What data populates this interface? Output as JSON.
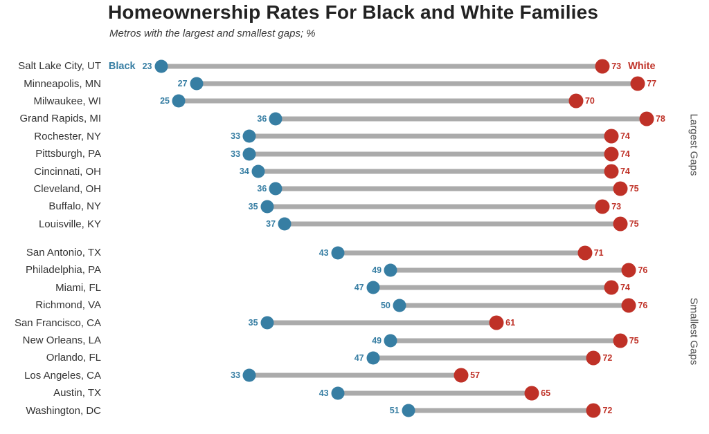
{
  "header": {
    "title": "Homeownership Rates For Black and White Families",
    "subtitle": "Metros with the largest and smallest gaps; %"
  },
  "legend": {
    "black": "Black",
    "white": "White"
  },
  "colors": {
    "black_dot": "#377EA3",
    "white_dot": "#BF3127",
    "bar": "#ABABAB",
    "title_text": "#222222",
    "metro_label_text": "#333333",
    "group_label_text": "#4d4d4d",
    "background": "#FFFFFF"
  },
  "chart_data": {
    "type": "dumbbell",
    "title": "Homeownership Rates For Black and White Families",
    "subtitle": "Metros with the largest and smallest gaps; %",
    "series_names": [
      "Black",
      "White"
    ],
    "unit": "%",
    "x_domain": [
      17,
      82
    ],
    "grid": false,
    "legend_position": "inline-first-row",
    "group_labels_position": "right-rotated",
    "groups": [
      {
        "label": "Largest Gaps",
        "rows": [
          {
            "metro": "Salt Lake City, UT",
            "black": 23,
            "white": 73
          },
          {
            "metro": "Minneapolis, MN",
            "black": 27,
            "white": 77
          },
          {
            "metro": "Milwaukee, WI",
            "black": 25,
            "white": 70
          },
          {
            "metro": "Grand Rapids, MI",
            "black": 36,
            "white": 78
          },
          {
            "metro": "Rochester, NY",
            "black": 33,
            "white": 74
          },
          {
            "metro": "Pittsburgh, PA",
            "black": 33,
            "white": 74
          },
          {
            "metro": "Cincinnati, OH",
            "black": 34,
            "white": 74
          },
          {
            "metro": "Cleveland, OH",
            "black": 36,
            "white": 75
          },
          {
            "metro": "Buffalo, NY",
            "black": 35,
            "white": 73
          },
          {
            "metro": "Louisville, KY",
            "black": 37,
            "white": 75
          }
        ]
      },
      {
        "label": "Smallest Gaps",
        "rows": [
          {
            "metro": "San Antonio, TX",
            "black": 43,
            "white": 71
          },
          {
            "metro": "Philadelphia, PA",
            "black": 49,
            "white": 76
          },
          {
            "metro": "Miami, FL",
            "black": 47,
            "white": 74
          },
          {
            "metro": "Richmond, VA",
            "black": 50,
            "white": 76
          },
          {
            "metro": "San Francisco, CA",
            "black": 35,
            "white": 61
          },
          {
            "metro": "New Orleans, LA",
            "black": 49,
            "white": 75
          },
          {
            "metro": "Orlando, FL",
            "black": 47,
            "white": 72
          },
          {
            "metro": "Los Angeles, CA",
            "black": 33,
            "white": 57
          },
          {
            "metro": "Austin, TX",
            "black": 43,
            "white": 65
          },
          {
            "metro": "Washington, DC",
            "black": 51,
            "white": 72
          }
        ]
      }
    ]
  }
}
